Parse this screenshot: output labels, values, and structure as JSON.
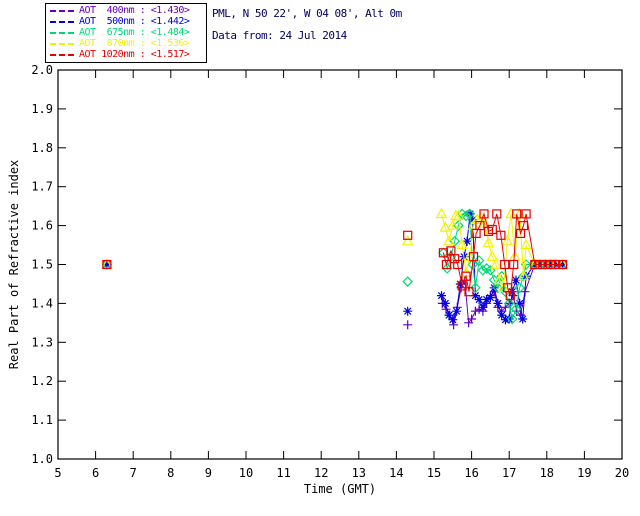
{
  "header": {
    "line1": "PML, N 50 22', W 04 08', Alt 0m",
    "line2": "Data from: 24 Jul 2014",
    "color": "#000060"
  },
  "legend": {
    "items": [
      {
        "label": "AOT  400nm : <1.430>",
        "color": "#6600BE"
      },
      {
        "label": "AOT  500nm : <1.442>",
        "color": "#0000E0"
      },
      {
        "label": "AOT  675nm : <1.484>",
        "color": "#00D878"
      },
      {
        "label": "AOT  870nm : <1.536>",
        "color": "#F2F200"
      },
      {
        "label": "AOT 1020nm : <1.517>",
        "color": "#E80000"
      }
    ]
  },
  "chart_data": {
    "type": "line",
    "title": "",
    "xlabel": "Time (GMT)",
    "ylabel": "Real Part of Refractive index",
    "xlim": [
      5,
      20
    ],
    "ylim": [
      1.0,
      2.0
    ],
    "xticks": [
      5,
      6,
      7,
      8,
      9,
      10,
      11,
      12,
      13,
      14,
      15,
      16,
      17,
      18,
      19,
      20
    ],
    "yticks": [
      1.0,
      1.1,
      1.2,
      1.3,
      1.4,
      1.5,
      1.6,
      1.7,
      1.8,
      1.9,
      2.0
    ],
    "grid": false,
    "legend_position": "top-left-outside",
    "axis_color": "#000000",
    "series": [
      {
        "name": "AOT 400nm",
        "mean_label": "<1.430>",
        "color": "#6600BE",
        "marker": "plus",
        "isolated_points": [
          [
            6.3,
            1.5
          ],
          [
            14.3,
            1.345
          ]
        ],
        "points": [
          [
            15.22,
            1.4
          ],
          [
            15.32,
            1.385
          ],
          [
            15.42,
            1.37
          ],
          [
            15.52,
            1.345
          ],
          [
            15.62,
            1.39
          ],
          [
            15.72,
            1.44
          ],
          [
            15.82,
            1.46
          ],
          [
            15.92,
            1.35
          ],
          [
            16.0,
            1.36
          ],
          [
            16.1,
            1.38
          ],
          [
            16.2,
            1.385
          ],
          [
            16.3,
            1.38
          ],
          [
            16.4,
            1.4
          ],
          [
            16.5,
            1.42
          ],
          [
            16.6,
            1.43
          ],
          [
            16.7,
            1.39
          ],
          [
            16.8,
            1.38
          ],
          [
            16.9,
            1.39
          ],
          [
            17.0,
            1.4
          ],
          [
            17.1,
            1.42
          ],
          [
            17.2,
            1.38
          ],
          [
            17.3,
            1.37
          ],
          [
            17.42,
            1.43
          ],
          [
            17.68,
            1.5
          ],
          [
            17.82,
            1.5
          ],
          [
            17.96,
            1.5
          ],
          [
            18.1,
            1.5
          ],
          [
            18.24,
            1.5
          ],
          [
            18.42,
            1.5
          ]
        ]
      },
      {
        "name": "AOT 500nm",
        "mean_label": "<1.442>",
        "color": "#0000E0",
        "marker": "asterisk",
        "isolated_points": [
          [
            6.3,
            1.5
          ],
          [
            14.3,
            1.38
          ]
        ],
        "points": [
          [
            15.2,
            1.42
          ],
          [
            15.3,
            1.4
          ],
          [
            15.4,
            1.37
          ],
          [
            15.5,
            1.358
          ],
          [
            15.6,
            1.38
          ],
          [
            15.7,
            1.45
          ],
          [
            15.8,
            1.52
          ],
          [
            15.88,
            1.56
          ],
          [
            15.96,
            1.63
          ],
          [
            16.03,
            1.615
          ],
          [
            16.1,
            1.42
          ],
          [
            16.2,
            1.41
          ],
          [
            16.3,
            1.39
          ],
          [
            16.4,
            1.41
          ],
          [
            16.5,
            1.415
          ],
          [
            16.6,
            1.44
          ],
          [
            16.7,
            1.4
          ],
          [
            16.8,
            1.37
          ],
          [
            16.9,
            1.358
          ],
          [
            17.0,
            1.36
          ],
          [
            17.08,
            1.43
          ],
          [
            17.18,
            1.46
          ],
          [
            17.28,
            1.4
          ],
          [
            17.36,
            1.36
          ],
          [
            17.45,
            1.47
          ],
          [
            17.68,
            1.5
          ],
          [
            17.82,
            1.5
          ],
          [
            17.96,
            1.5
          ],
          [
            18.1,
            1.5
          ],
          [
            18.24,
            1.5
          ],
          [
            18.42,
            1.5
          ]
        ]
      },
      {
        "name": "AOT 675nm",
        "mean_label": "<1.484>",
        "color": "#00D878",
        "marker": "diamond",
        "isolated_points": [
          [
            6.3,
            1.5
          ],
          [
            14.3,
            1.456
          ]
        ],
        "points": [
          [
            15.25,
            1.53
          ],
          [
            15.35,
            1.49
          ],
          [
            15.45,
            1.52
          ],
          [
            15.55,
            1.56
          ],
          [
            15.65,
            1.6
          ],
          [
            15.75,
            1.63
          ],
          [
            15.85,
            1.625
          ],
          [
            15.95,
            1.63
          ],
          [
            16.03,
            1.5
          ],
          [
            16.1,
            1.44
          ],
          [
            16.2,
            1.51
          ],
          [
            16.3,
            1.485
          ],
          [
            16.4,
            1.49
          ],
          [
            16.5,
            1.485
          ],
          [
            16.6,
            1.46
          ],
          [
            16.7,
            1.44
          ],
          [
            16.8,
            1.47
          ],
          [
            16.9,
            1.43
          ],
          [
            17.0,
            1.4
          ],
          [
            17.08,
            1.36
          ],
          [
            17.18,
            1.385
          ],
          [
            17.28,
            1.44
          ],
          [
            17.38,
            1.47
          ],
          [
            17.45,
            1.5
          ],
          [
            17.68,
            1.5
          ],
          [
            17.82,
            1.5
          ],
          [
            17.96,
            1.5
          ],
          [
            18.1,
            1.5
          ],
          [
            18.24,
            1.5
          ],
          [
            18.42,
            1.5
          ]
        ]
      },
      {
        "name": "AOT 870nm",
        "mean_label": "<1.536>",
        "color": "#F2F200",
        "marker": "triangle",
        "isolated_points": [
          [
            6.3,
            1.5
          ],
          [
            14.3,
            1.56
          ]
        ],
        "points": [
          [
            15.2,
            1.63
          ],
          [
            15.3,
            1.595
          ],
          [
            15.4,
            1.56
          ],
          [
            15.5,
            1.6
          ],
          [
            15.58,
            1.625
          ],
          [
            15.66,
            1.625
          ],
          [
            15.75,
            1.55
          ],
          [
            15.85,
            1.48
          ],
          [
            15.95,
            1.52
          ],
          [
            16.05,
            1.6
          ],
          [
            16.15,
            1.615
          ],
          [
            16.25,
            1.62
          ],
          [
            16.35,
            1.605
          ],
          [
            16.45,
            1.555
          ],
          [
            16.55,
            1.52
          ],
          [
            16.65,
            1.5
          ],
          [
            16.75,
            1.46
          ],
          [
            16.85,
            1.44
          ],
          [
            16.95,
            1.56
          ],
          [
            17.05,
            1.63
          ],
          [
            17.15,
            1.52
          ],
          [
            17.28,
            1.63
          ],
          [
            17.38,
            1.47
          ],
          [
            17.45,
            1.55
          ],
          [
            17.68,
            1.5
          ],
          [
            17.82,
            1.5
          ],
          [
            17.96,
            1.5
          ],
          [
            18.1,
            1.5
          ],
          [
            18.24,
            1.5
          ],
          [
            18.42,
            1.5
          ]
        ]
      },
      {
        "name": "AOT 1020nm",
        "mean_label": "<1.517>",
        "color": "#E80000",
        "marker": "square",
        "isolated_points": [
          [
            6.3,
            1.5
          ],
          [
            14.3,
            1.575
          ]
        ],
        "points": [
          [
            15.25,
            1.53
          ],
          [
            15.33,
            1.5
          ],
          [
            15.45,
            1.535
          ],
          [
            15.55,
            1.515
          ],
          [
            15.63,
            1.5
          ],
          [
            15.75,
            1.445
          ],
          [
            15.85,
            1.47
          ],
          [
            15.93,
            1.43
          ],
          [
            16.05,
            1.52
          ],
          [
            16.12,
            1.58
          ],
          [
            16.22,
            1.6
          ],
          [
            16.33,
            1.63
          ],
          [
            16.45,
            1.585
          ],
          [
            16.55,
            1.59
          ],
          [
            16.67,
            1.63
          ],
          [
            16.78,
            1.575
          ],
          [
            16.88,
            1.5
          ],
          [
            16.96,
            1.44
          ],
          [
            17.03,
            1.42
          ],
          [
            17.12,
            1.5
          ],
          [
            17.2,
            1.63
          ],
          [
            17.3,
            1.58
          ],
          [
            17.38,
            1.6
          ],
          [
            17.45,
            1.63
          ],
          [
            17.68,
            1.5
          ],
          [
            17.82,
            1.5
          ],
          [
            17.96,
            1.5
          ],
          [
            18.1,
            1.5
          ],
          [
            18.24,
            1.5
          ],
          [
            18.42,
            1.5
          ]
        ]
      }
    ]
  }
}
